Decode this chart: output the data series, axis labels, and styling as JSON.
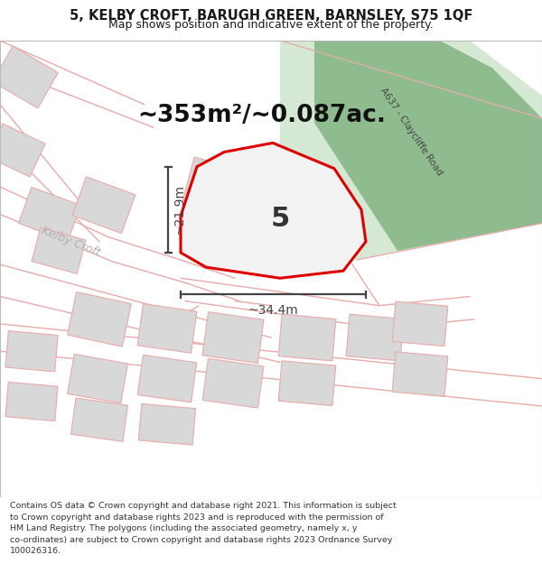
{
  "title_line1": "5, KELBY CROFT, BARUGH GREEN, BARNSLEY, S75 1QF",
  "title_line2": "Map shows position and indicative extent of the property.",
  "area_label": "~353m²/~0.087ac.",
  "plot_number": "5",
  "dim_vertical": "~21.9m",
  "dim_horizontal": "~34.4m",
  "road_label": "A637 - Claycliffe Road",
  "street_label": "Kelby Croft",
  "footer_lines": [
    "Contains OS data © Crown copyright and database right 2021. This information is subject",
    "to Crown copyright and database rights 2023 and is reproduced with the permission of",
    "HM Land Registry. The polygons (including the associated geometry, namely x, y",
    "co-ordinates) are subject to Crown copyright and database rights 2023 Ordnance Survey",
    "100026316."
  ],
  "map_bg": "#f7f3f3",
  "green_light": "#d4e8d4",
  "green_dark": "#8fbc8f",
  "plot_fill": "#f2f2f2",
  "plot_outline": "#dd0000",
  "pink": "#e8aaaa",
  "building_fill": "#d8d8d8",
  "dim_color": "#444444",
  "title_fontsize": 10.5,
  "subtitle_fontsize": 9,
  "area_fontsize": 19,
  "plot_num_fontsize": 22,
  "dim_fontsize": 10,
  "footer_fontsize": 6.8,
  "road_label_fontsize": 7.5,
  "street_label_fontsize": 9
}
